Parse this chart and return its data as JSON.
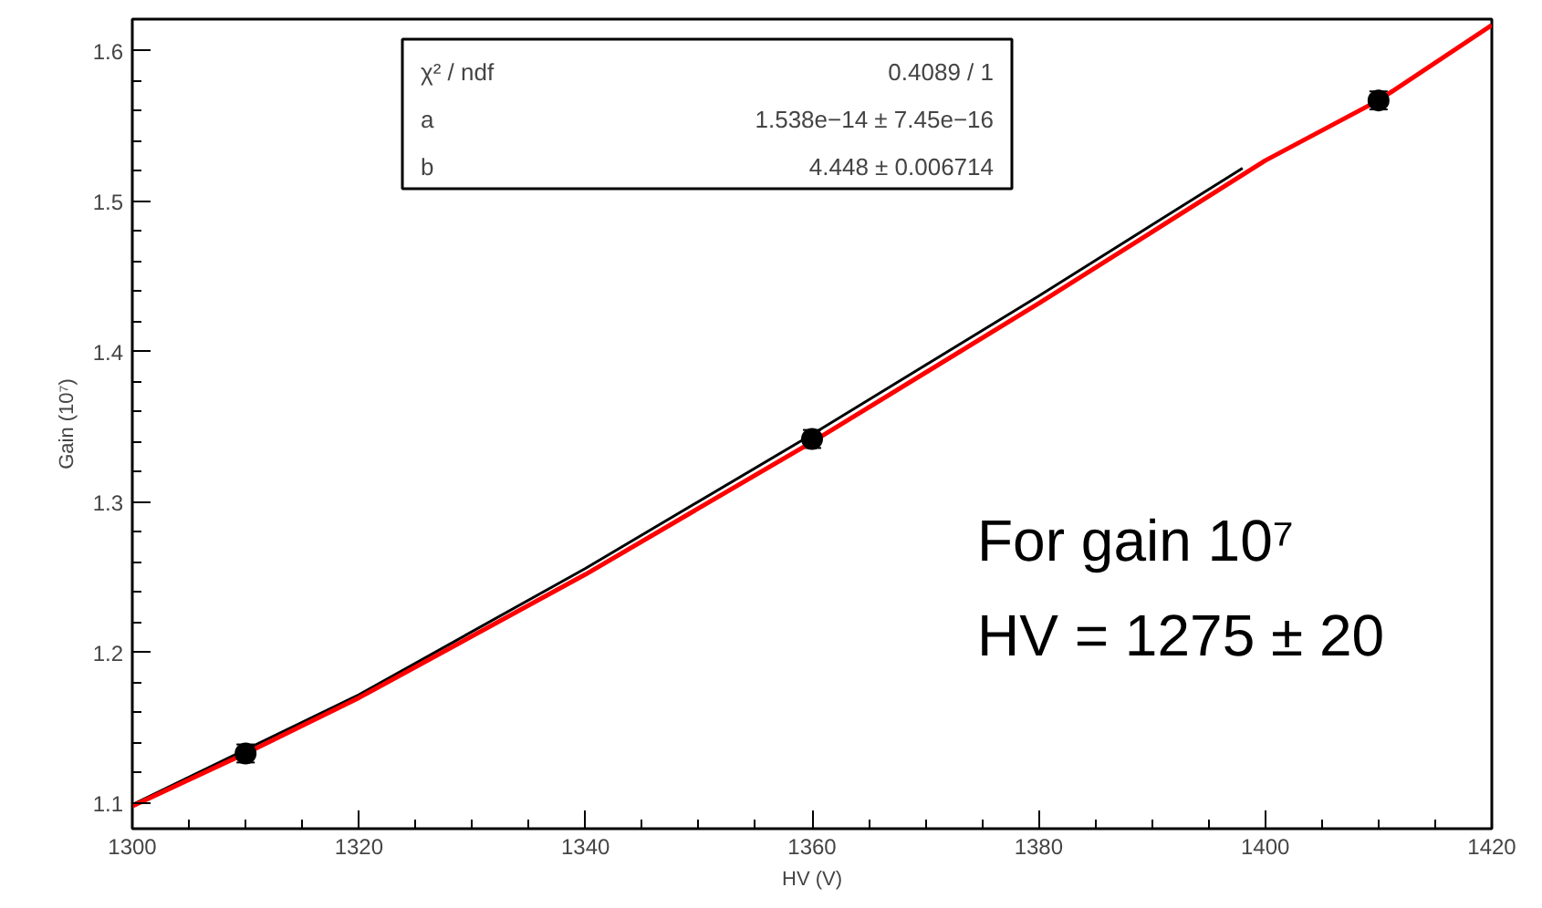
{
  "chart_data": {
    "type": "scatter",
    "xlabel": "HV (V)",
    "ylabel": "Gain (10⁷)",
    "xlim": [
      1300,
      1420
    ],
    "ylim": [
      1.083,
      1.621
    ],
    "xticks": [
      1300,
      1320,
      1340,
      1360,
      1380,
      1400,
      1420
    ],
    "yticks": [
      1.1,
      1.2,
      1.3,
      1.4,
      1.5,
      1.6
    ],
    "grid": false,
    "series": [
      {
        "marker": "circle",
        "color": "#000000",
        "x": [
          1310,
          1360,
          1410
        ],
        "values": [
          1.133,
          1.342,
          1.567
        ],
        "errors": [
          0.006,
          0.006,
          0.006
        ]
      },
      {
        "type": "line",
        "marker": "none",
        "color": "#000000",
        "x": [
          1300,
          1320,
          1340,
          1360,
          1380,
          1398
        ],
        "values": [
          1.099,
          1.172,
          1.256,
          1.345,
          1.437,
          1.522
        ]
      },
      {
        "type": "line",
        "marker": "none",
        "color": "#ff0000",
        "x": [
          1300,
          1310,
          1320,
          1340,
          1360,
          1380,
          1400,
          1410,
          1420
        ],
        "values": [
          1.098,
          1.133,
          1.17,
          1.252,
          1.34,
          1.432,
          1.527,
          1.567,
          1.617
        ]
      }
    ],
    "annotations": [
      "χ² / ndf",
      "0.4089 / 1",
      "a",
      "1.538e−14 ± 7.45e−16",
      "b",
      "4.448 ± 0.006714",
      "For gain 10⁷",
      "HV = 1275 ± 20"
    ]
  }
}
